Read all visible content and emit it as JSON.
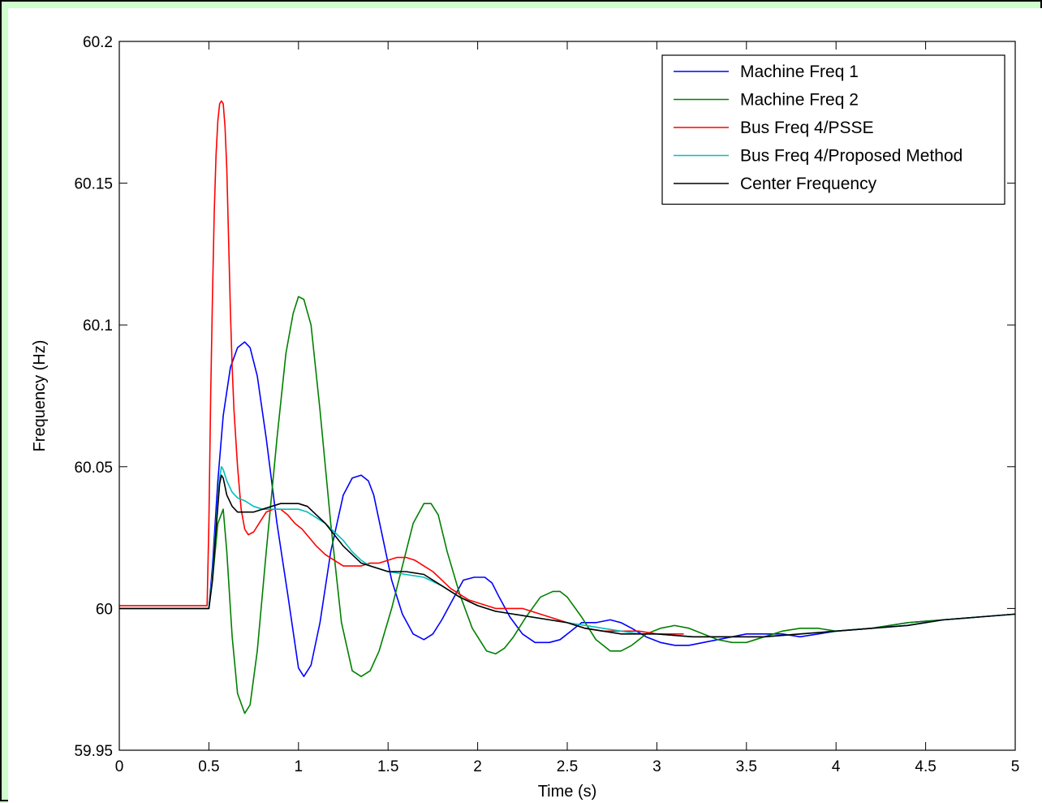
{
  "chart_data": {
    "type": "line",
    "title": "",
    "xlabel": "Time (s)",
    "ylabel": "Frequency (Hz)",
    "xlim": [
      0,
      5
    ],
    "ylim": [
      59.95,
      60.2
    ],
    "xticks": [
      0,
      0.5,
      1,
      1.5,
      2,
      2.5,
      3,
      3.5,
      4,
      4.5,
      5
    ],
    "xtick_labels": [
      "0",
      "0.5",
      "1",
      "1.5",
      "2",
      "2.5",
      "3",
      "3.5",
      "4",
      "4.5",
      "5"
    ],
    "yticks": [
      59.95,
      60,
      60.05,
      60.1,
      60.15,
      60.2
    ],
    "ytick_labels": [
      "59.95",
      "60",
      "60.05",
      "60.1",
      "60.15",
      "60.2"
    ],
    "grid": false,
    "legend_position": "top-right",
    "series": [
      {
        "name": "Machine Freq 1",
        "color": "#0000ff",
        "x": [
          0,
          0.5,
          0.52,
          0.55,
          0.58,
          0.62,
          0.66,
          0.7,
          0.73,
          0.77,
          0.82,
          0.88,
          0.94,
          1.0,
          1.03,
          1.07,
          1.12,
          1.18,
          1.25,
          1.3,
          1.35,
          1.39,
          1.42,
          1.47,
          1.52,
          1.58,
          1.64,
          1.7,
          1.75,
          1.8,
          1.86,
          1.92,
          1.98,
          2.04,
          2.08,
          2.12,
          2.18,
          2.25,
          2.32,
          2.4,
          2.46,
          2.52,
          2.58,
          2.66,
          2.74,
          2.8,
          2.86,
          2.94,
          3.02,
          3.1,
          3.18,
          3.26,
          3.34,
          3.42,
          3.5,
          3.6,
          3.7,
          3.8,
          3.9,
          4.0,
          4.2,
          4.4,
          4.6,
          4.8,
          5.0
        ],
        "values": [
          60.0,
          60.0,
          60.015,
          60.045,
          60.068,
          60.085,
          60.092,
          60.094,
          60.092,
          60.082,
          60.06,
          60.03,
          60.005,
          59.979,
          59.976,
          59.98,
          59.995,
          60.02,
          60.04,
          60.046,
          60.047,
          60.045,
          60.04,
          60.025,
          60.01,
          59.998,
          59.991,
          59.989,
          59.991,
          59.996,
          60.003,
          60.01,
          60.011,
          60.011,
          60.009,
          60.004,
          59.997,
          59.991,
          59.988,
          59.988,
          59.989,
          59.992,
          59.995,
          59.995,
          59.996,
          59.995,
          59.993,
          59.99,
          59.988,
          59.987,
          59.987,
          59.988,
          59.989,
          59.99,
          59.991,
          59.991,
          59.991,
          59.99,
          59.991,
          59.992,
          59.993,
          59.995,
          59.996,
          59.997,
          59.998
        ]
      },
      {
        "name": "Machine Freq 2",
        "color": "#008000",
        "x": [
          0,
          0.5,
          0.52,
          0.55,
          0.58,
          0.6,
          0.63,
          0.66,
          0.7,
          0.73,
          0.77,
          0.82,
          0.88,
          0.93,
          0.97,
          1.0,
          1.03,
          1.07,
          1.12,
          1.18,
          1.24,
          1.3,
          1.35,
          1.4,
          1.45,
          1.52,
          1.58,
          1.64,
          1.7,
          1.74,
          1.78,
          1.83,
          1.9,
          1.97,
          2.05,
          2.1,
          2.15,
          2.2,
          2.27,
          2.35,
          2.42,
          2.46,
          2.5,
          2.58,
          2.66,
          2.74,
          2.8,
          2.86,
          2.94,
          3.02,
          3.1,
          3.18,
          3.26,
          3.34,
          3.42,
          3.5,
          3.6,
          3.7,
          3.8,
          3.9,
          4.0,
          4.2,
          4.4,
          4.6,
          4.8,
          5.0
        ],
        "values": [
          60.0,
          60.0,
          60.01,
          60.03,
          60.035,
          60.02,
          59.99,
          59.97,
          59.963,
          59.966,
          59.985,
          60.02,
          60.06,
          60.09,
          60.104,
          60.11,
          60.109,
          60.1,
          60.07,
          60.03,
          59.995,
          59.978,
          59.976,
          59.978,
          59.985,
          60.0,
          60.015,
          60.03,
          60.037,
          60.037,
          60.033,
          60.02,
          60.005,
          59.993,
          59.985,
          59.984,
          59.986,
          59.99,
          59.997,
          60.004,
          60.006,
          60.006,
          60.004,
          59.997,
          59.989,
          59.985,
          59.985,
          59.987,
          59.991,
          59.993,
          59.994,
          59.993,
          59.991,
          59.989,
          59.988,
          59.988,
          59.99,
          59.992,
          59.993,
          59.993,
          59.992,
          59.993,
          59.995,
          59.996,
          59.997,
          59.998
        ]
      },
      {
        "name": "Bus Freq 4/PSSE",
        "color": "#ff0000",
        "x": [
          0,
          0.49,
          0.5,
          0.51,
          0.52,
          0.53,
          0.54,
          0.55,
          0.56,
          0.57,
          0.58,
          0.59,
          0.6,
          0.61,
          0.62,
          0.63,
          0.64,
          0.66,
          0.68,
          0.7,
          0.72,
          0.75,
          0.78,
          0.82,
          0.86,
          0.9,
          0.94,
          0.98,
          1.02,
          1.06,
          1.1,
          1.15,
          1.2,
          1.25,
          1.3,
          1.35,
          1.4,
          1.45,
          1.5,
          1.55,
          1.6,
          1.65,
          1.7,
          1.75,
          1.8,
          1.85,
          1.9,
          1.95,
          2.0,
          2.05,
          2.1,
          2.15,
          2.2,
          2.25,
          2.3,
          2.4,
          2.5,
          2.6,
          2.7,
          2.8,
          2.9,
          3.0,
          3.1,
          3.15
        ],
        "values": [
          60.001,
          60.001,
          60.03,
          60.075,
          60.11,
          60.14,
          60.16,
          60.172,
          60.178,
          60.179,
          60.178,
          60.17,
          60.155,
          60.13,
          60.105,
          60.085,
          60.07,
          60.05,
          60.035,
          60.028,
          60.026,
          60.027,
          60.03,
          60.034,
          60.035,
          60.035,
          60.033,
          60.03,
          60.028,
          60.025,
          60.022,
          60.019,
          60.017,
          60.015,
          60.015,
          60.015,
          60.016,
          60.016,
          60.017,
          60.018,
          60.018,
          60.017,
          60.015,
          60.013,
          60.01,
          60.007,
          60.005,
          60.003,
          60.002,
          60.001,
          60.0,
          60.0,
          60.0,
          60.0,
          59.999,
          59.997,
          59.995,
          59.993,
          59.992,
          59.992,
          59.992,
          59.991,
          59.991,
          59.991
        ]
      },
      {
        "name": "Bus Freq 4/Proposed Method",
        "color": "#00bfbf",
        "x": [
          0,
          0.5,
          0.52,
          0.54,
          0.56,
          0.57,
          0.58,
          0.6,
          0.63,
          0.66,
          0.7,
          0.75,
          0.8,
          0.85,
          0.9,
          0.95,
          1.0,
          1.05,
          1.1,
          1.15,
          1.2,
          1.25,
          1.3,
          1.35,
          1.4,
          1.45,
          1.5,
          1.6,
          1.7,
          1.8,
          1.9,
          2.0,
          2.1,
          2.2,
          2.3,
          2.4,
          2.5,
          2.6,
          2.7,
          2.8,
          2.9,
          3.0,
          3.2,
          3.4,
          3.6,
          3.8,
          4.0,
          4.2,
          4.4,
          4.6,
          4.8,
          5.0
        ],
        "values": [
          60.0,
          60.0,
          60.012,
          60.03,
          60.046,
          60.05,
          60.049,
          60.045,
          60.041,
          60.039,
          60.038,
          60.036,
          60.035,
          60.035,
          60.035,
          60.035,
          60.035,
          60.034,
          60.032,
          60.03,
          60.027,
          60.024,
          60.02,
          60.017,
          60.015,
          60.014,
          60.013,
          60.012,
          60.011,
          60.008,
          60.004,
          60.001,
          59.999,
          59.998,
          59.997,
          59.996,
          59.995,
          59.994,
          59.993,
          59.992,
          59.991,
          59.991,
          59.99,
          59.99,
          59.99,
          59.991,
          59.992,
          59.993,
          59.994,
          59.996,
          59.997,
          59.998
        ]
      },
      {
        "name": "Center Frequency",
        "color": "#000000",
        "x": [
          0,
          0.5,
          0.52,
          0.54,
          0.56,
          0.57,
          0.58,
          0.6,
          0.63,
          0.66,
          0.7,
          0.75,
          0.8,
          0.85,
          0.9,
          0.95,
          1.0,
          1.05,
          1.1,
          1.15,
          1.2,
          1.25,
          1.3,
          1.35,
          1.4,
          1.45,
          1.5,
          1.6,
          1.7,
          1.8,
          1.9,
          2.0,
          2.1,
          2.2,
          2.3,
          2.4,
          2.5,
          2.6,
          2.7,
          2.8,
          2.9,
          3.0,
          3.2,
          3.4,
          3.6,
          3.8,
          4.0,
          4.2,
          4.4,
          4.6,
          4.8,
          5.0
        ],
        "values": [
          60.0,
          60.0,
          60.01,
          60.028,
          60.044,
          60.047,
          60.046,
          60.04,
          60.036,
          60.034,
          60.034,
          60.034,
          60.035,
          60.036,
          60.037,
          60.037,
          60.037,
          60.036,
          60.033,
          60.03,
          60.026,
          60.022,
          60.019,
          60.016,
          60.015,
          60.014,
          60.013,
          60.013,
          60.012,
          60.008,
          60.004,
          60.001,
          59.999,
          59.998,
          59.997,
          59.996,
          59.995,
          59.993,
          59.992,
          59.991,
          59.991,
          59.991,
          59.99,
          59.99,
          59.99,
          59.991,
          59.992,
          59.993,
          59.994,
          59.996,
          59.997,
          59.998
        ]
      }
    ]
  }
}
